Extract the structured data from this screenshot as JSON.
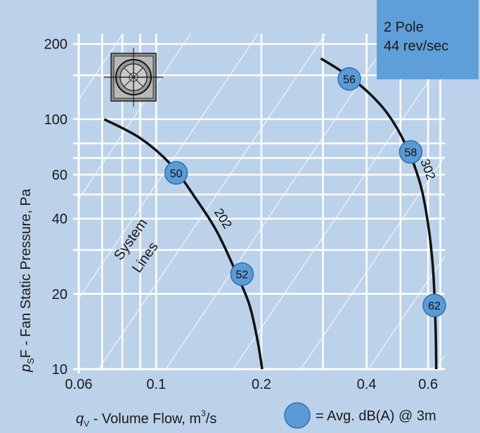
{
  "info_box": {
    "line1": "2 Pole",
    "line2": "44 rev/sec"
  },
  "legend": {
    "text": "= Avg. dB(A) @ 3m",
    "marker_color": "#5b9bd5"
  },
  "colors": {
    "background": "#bcd2ea",
    "grid": "#ffffff",
    "curve": "#111111",
    "marker_fill": "#5b9bd5",
    "marker_stroke": "#2f6fb0",
    "info_box": "#5f9fd9"
  },
  "icon": "fan-unit-icon",
  "chart_data": {
    "type": "line",
    "x_scale": "log",
    "y_scale": "log",
    "xlim": [
      0.06,
      0.67
    ],
    "ylim": [
      10,
      220
    ],
    "x_ticks": [
      0.06,
      0.1,
      0.2,
      0.4,
      0.6
    ],
    "x_tick_labels": [
      "0.06",
      "0.1",
      "0.2",
      "0.4",
      "0.6"
    ],
    "x_minor_gridlines": [
      0.07,
      0.08,
      0.09,
      0.3,
      0.5,
      0.65
    ],
    "y_ticks": [
      10,
      20,
      40,
      60,
      100,
      200
    ],
    "y_tick_labels": [
      "10",
      "20",
      "40",
      "60",
      "100",
      "200"
    ],
    "y_minor_gridlines": [
      30,
      50,
      70,
      80,
      150
    ],
    "xlabel_main": "q",
    "xlabel_sub": "V",
    "xlabel_rest": " - Volume Flow, m",
    "xlabel_sup": "3",
    "xlabel_end": "/s",
    "ylabel_main": "p",
    "ylabel_sub": "S",
    "ylabel_rest": "F - Fan Static Pressure, Pa",
    "system_lines_label_1": "System",
    "system_lines_label_2": "Lines",
    "system_lines_count": 9,
    "series": [
      {
        "name": "202",
        "x": [
          0.071,
          0.09,
          0.11,
          0.13,
          0.15,
          0.17,
          0.185,
          0.195,
          0.201
        ],
        "y": [
          100,
          84,
          66,
          48,
          35,
          24,
          18,
          13,
          10
        ],
        "markers": [
          {
            "x": 0.114,
            "y": 61,
            "label": "50"
          },
          {
            "x": 0.176,
            "y": 24,
            "label": "52"
          }
        ]
      },
      {
        "name": "302",
        "x": [
          0.296,
          0.34,
          0.4,
          0.46,
          0.52,
          0.57,
          0.6,
          0.62,
          0.63,
          0.633
        ],
        "y": [
          175,
          155,
          130,
          105,
          78,
          55,
          38,
          25,
          15,
          10
        ],
        "markers": [
          {
            "x": 0.357,
            "y": 145,
            "label": "56"
          },
          {
            "x": 0.535,
            "y": 74,
            "label": "58"
          },
          {
            "x": 0.625,
            "y": 18,
            "label": "62"
          }
        ]
      }
    ]
  }
}
